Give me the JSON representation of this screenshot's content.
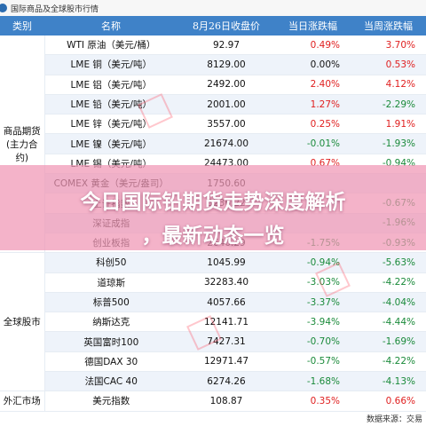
{
  "header_title": "国际商品及全球股市行情",
  "columns": [
    "类别",
    "名称",
    "8月26日收盘价",
    "当日涨跌幅",
    "当周涨跌幅"
  ],
  "groups": [
    {
      "category": "商品期货\n(主力合约)",
      "rows": [
        {
          "name": "WTI 原油（美元/桶）",
          "price": "92.97",
          "day": "0.49%",
          "week": "3.70%"
        },
        {
          "name": "LME 铜（美元/吨）",
          "price": "8129.00",
          "day": "0.00%",
          "week": "0.53%"
        },
        {
          "name": "LME 铝（美元/吨）",
          "price": "2492.00",
          "day": "2.40%",
          "week": "4.12%"
        },
        {
          "name": "LME 铅（美元/吨）",
          "price": "2001.00",
          "day": "1.27%",
          "week": "-2.29%"
        },
        {
          "name": "LME 锌（美元/吨）",
          "price": "3557.00",
          "day": "0.25%",
          "week": "1.91%"
        },
        {
          "name": "LME 镍（美元/吨）",
          "price": "21674.00",
          "day": "-0.01%",
          "week": "-1.93%"
        },
        {
          "name": "LME 锡（美元/吨）",
          "price": "24473.00",
          "day": "0.67%",
          "week": "-0.94%"
        },
        {
          "name": "COMEX 黄金（美元/盎司）",
          "price": "1750.60",
          "day": "",
          "week": ""
        },
        {
          "name": "上证指数",
          "price": "3236.22",
          "day": "",
          "week": "-0.67%"
        },
        {
          "name": "深证成指",
          "price": "",
          "day": "",
          "week": "-1.96%"
        },
        {
          "name": "创业板指",
          "price": "2640.29",
          "day": "-1.75%",
          "week": "-0.93%"
        }
      ]
    },
    {
      "category": "全球股市",
      "rows": [
        {
          "name": "科创50",
          "price": "1045.99",
          "day": "-0.94%",
          "week": "-5.63%"
        },
        {
          "name": "道琼斯",
          "price": "32283.40",
          "day": "-3.03%",
          "week": "-4.22%"
        },
        {
          "name": "标普500",
          "price": "4057.66",
          "day": "-3.37%",
          "week": "-4.04%"
        },
        {
          "name": "纳斯达克",
          "price": "12141.71",
          "day": "-3.94%",
          "week": "-4.44%"
        },
        {
          "name": "英国富时100",
          "price": "7427.31",
          "day": "-0.70%",
          "week": "-1.69%"
        },
        {
          "name": "德国DAX 30",
          "price": "12971.47",
          "day": "-0.57%",
          "week": "-4.22%"
        },
        {
          "name": "法国CAC 40",
          "price": "6274.26",
          "day": "-1.68%",
          "week": "-4.13%"
        }
      ]
    },
    {
      "category": "外汇市场",
      "rows": [
        {
          "name": "美元指数",
          "price": "108.87",
          "day": "0.35%",
          "week": "0.66%"
        }
      ]
    }
  ],
  "source": "数据来源：交易",
  "headline_line1": "今日国际铅期货走势深度解析",
  "headline_line2": "，最新动态一览",
  "colors": {
    "header_bg": "#3f82c8",
    "up": "#e02020",
    "down": "#1a8a3a",
    "banner": "#f096b4"
  }
}
